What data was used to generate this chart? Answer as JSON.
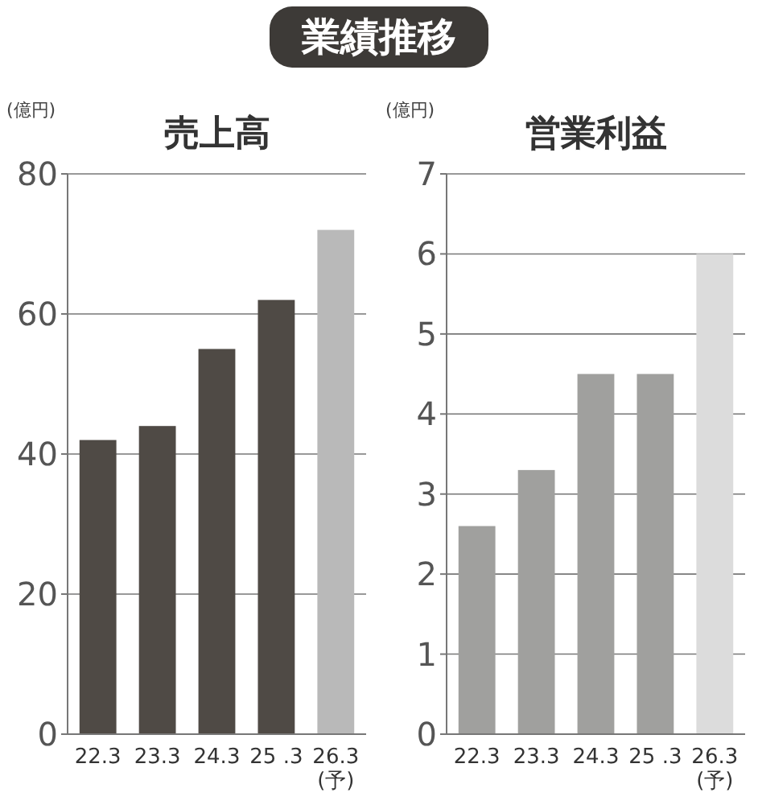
{
  "chart_data": [
    {
      "type": "bar",
      "title": "売上高",
      "ylabel": "(億円)",
      "annotations": [
        "業績推移"
      ],
      "categories": [
        "22.3",
        "23.3",
        "24.3",
        "25 .3",
        "26.3\n(予)"
      ],
      "values": [
        42,
        44,
        55,
        62,
        72
      ],
      "colors": [
        "#4f4a45",
        "#4f4a45",
        "#4f4a45",
        "#4f4a45",
        "#b9b9b9"
      ],
      "ylim": [
        0,
        80
      ],
      "yticks": [
        0,
        20,
        40,
        60,
        80
      ],
      "grid": "y"
    },
    {
      "type": "bar",
      "title": "営業利益",
      "ylabel": "(億円)",
      "categories": [
        "22.3",
        "23.3",
        "24.3",
        "25 .3",
        "26.3\n(予)"
      ],
      "values": [
        2.6,
        3.3,
        4.5,
        4.5,
        6.0
      ],
      "colors": [
        "#a0a09e",
        "#a0a09e",
        "#a0a09e",
        "#a0a09e",
        "#dcdcdc"
      ],
      "ylim": [
        0,
        7
      ],
      "yticks": [
        0,
        1,
        2,
        3,
        4,
        5,
        6,
        7
      ],
      "grid": "y"
    }
  ]
}
